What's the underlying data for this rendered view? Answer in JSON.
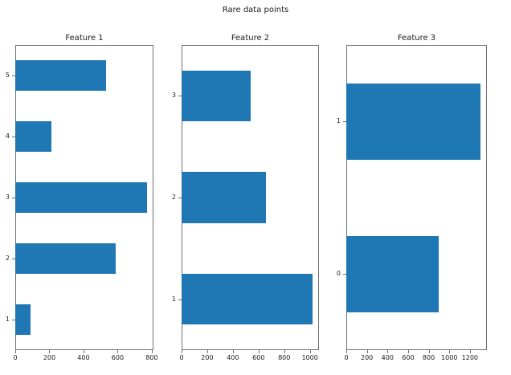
{
  "figure": {
    "suptitle": "Rare data points",
    "background": "#ffffff",
    "bar_color": "#1f77b4",
    "spine_color": "#707070",
    "text_color": "#1a1a1a"
  },
  "chart_data": [
    {
      "type": "bar",
      "orientation": "horizontal",
      "title": "Feature 1",
      "categories": [
        "1",
        "2",
        "3",
        "4",
        "5"
      ],
      "values": [
        90,
        590,
        770,
        210,
        530
      ],
      "xticks": [
        0,
        200,
        400,
        600,
        800
      ],
      "xlim": [
        0,
        810
      ],
      "xlabel": "",
      "ylabel": "",
      "bar_fraction": 0.5,
      "grid": false,
      "legend": false
    },
    {
      "type": "bar",
      "orientation": "horizontal",
      "title": "Feature 2",
      "categories": [
        "1",
        "2",
        "3"
      ],
      "values": [
        1020,
        660,
        540
      ],
      "xticks": [
        0,
        200,
        400,
        600,
        800,
        1000
      ],
      "xlim": [
        0,
        1071
      ],
      "xlabel": "",
      "ylabel": "",
      "bar_fraction": 0.5,
      "grid": false,
      "legend": false
    },
    {
      "type": "bar",
      "orientation": "horizontal",
      "title": "Feature 3",
      "categories": [
        "0",
        "1"
      ],
      "values": [
        900,
        1300
      ],
      "xticks": [
        0,
        200,
        400,
        600,
        800,
        1000,
        1200
      ],
      "xlim": [
        0,
        1365
      ],
      "xlabel": "",
      "ylabel": "",
      "bar_fraction": 0.5,
      "grid": false,
      "legend": false
    }
  ]
}
